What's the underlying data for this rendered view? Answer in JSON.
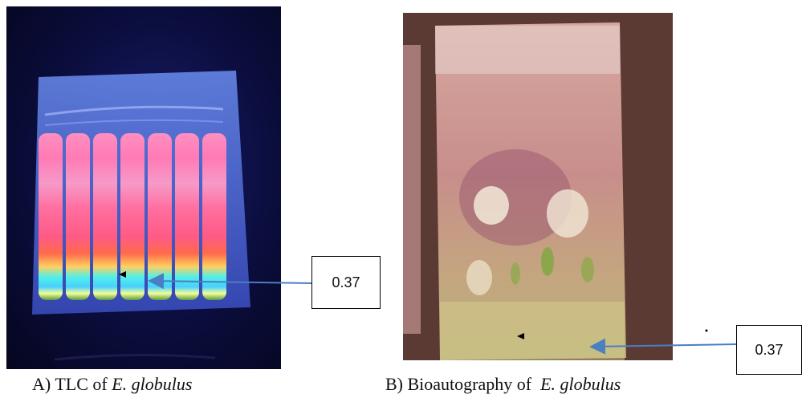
{
  "panel_a": {
    "caption_prefix": "A) TLC of ",
    "caption_species": "E. globulus",
    "rf_label": "0.37"
  },
  "panel_b": {
    "caption_prefix": "B) Bioautography of  ",
    "caption_species": "E. globulus",
    "rf_label": "0.37"
  },
  "colors": {
    "arrow": "#4a7fc1",
    "uv_background": "#0b0d3d",
    "plate_pink": "#ff6fa8",
    "plate_cyan": "#53f0e6",
    "bioauto_plate": "#c98d88"
  }
}
